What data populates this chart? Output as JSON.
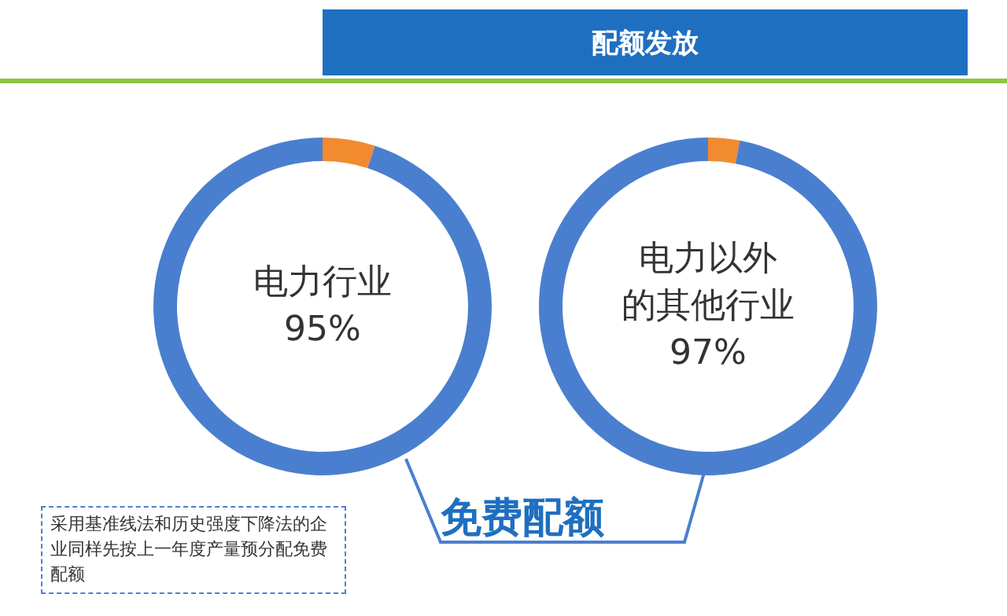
{
  "chart_data": [
    {
      "type": "other",
      "title": "配额发放",
      "annotations": [
        "免费配额",
        "采用基准线法和历史强度下降法的企业同样先按上一年度产量预分配免费配额"
      ]
    },
    {
      "type": "donut",
      "categories": [
        "电力行业",
        null
      ],
      "values": [
        95,
        5
      ],
      "colors": [
        "#4a7fcf",
        "#f28a30"
      ],
      "value_labels": [
        "95%",
        null
      ]
    },
    {
      "type": "donut",
      "categories": [
        "电力以外的其他行业",
        null
      ],
      "values": [
        97,
        3
      ],
      "colors": [
        "#4a7fcf",
        "#f28a30"
      ],
      "value_labels": [
        "97%",
        null
      ]
    }
  ]
}
